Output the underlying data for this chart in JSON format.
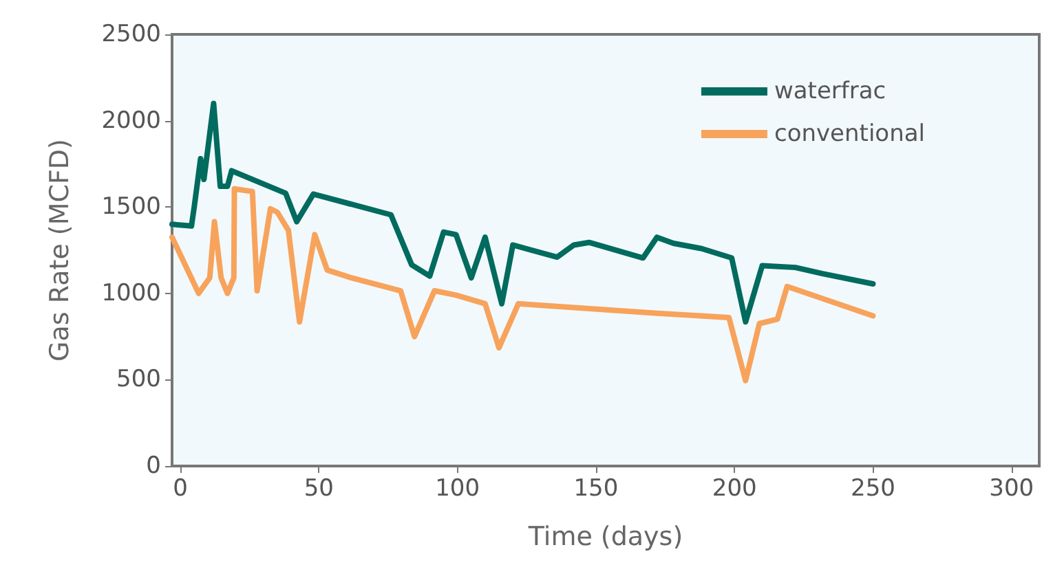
{
  "chart_data": {
    "type": "line",
    "xlabel": "Time (days)",
    "ylabel": "Gas Rate (MCFD)",
    "xlim": [
      -3,
      310
    ],
    "xticks": [
      0,
      50,
      100,
      150,
      200,
      250,
      300
    ],
    "ylim": [
      0,
      2500
    ],
    "yticks": [
      0,
      500,
      1000,
      1500,
      2000,
      2500
    ],
    "grid": false,
    "legend": "top right",
    "marker": "none",
    "line_style": "solid",
    "series": [
      {
        "name": "waterfrac",
        "color": "#006b5e",
        "x": [
          -3,
          4,
          5,
          7.3,
          8.5,
          12,
          14.4,
          17,
          18.5,
          38,
          42,
          48,
          76,
          83.5,
          90,
          95,
          99.5,
          105,
          110,
          116,
          120,
          136,
          142,
          147.5,
          167,
          172,
          178,
          188,
          199,
          204,
          210,
          222,
          231.5,
          250
        ],
        "values": [
          1400,
          1390,
          1500,
          1780,
          1660,
          2100,
          1620,
          1620,
          1710,
          1580,
          1415,
          1575,
          1455,
          1165,
          1100,
          1355,
          1340,
          1090,
          1325,
          940,
          1280,
          1210,
          1280,
          1295,
          1205,
          1325,
          1290,
          1260,
          1205,
          835,
          1160,
          1150,
          1115,
          1055
        ]
      },
      {
        "name": "conventional",
        "color": "#f7a35c",
        "x": [
          -3,
          6.6,
          10.6,
          12.3,
          14.7,
          17,
          19.3,
          19.5,
          26,
          27.7,
          32.5,
          35,
          39,
          43,
          48.5,
          53,
          61.7,
          79.5,
          84.5,
          91.7,
          99.5,
          110,
          115,
          122,
          172,
          198,
          204,
          209,
          215.5,
          219,
          250
        ],
        "values": [
          1325,
          1000,
          1090,
          1415,
          1090,
          1000,
          1090,
          1605,
          1590,
          1015,
          1490,
          1470,
          1365,
          835,
          1340,
          1135,
          1090,
          1015,
          750,
          1015,
          990,
          940,
          685,
          940,
          885,
          860,
          495,
          825,
          850,
          1040,
          870
        ]
      }
    ]
  }
}
